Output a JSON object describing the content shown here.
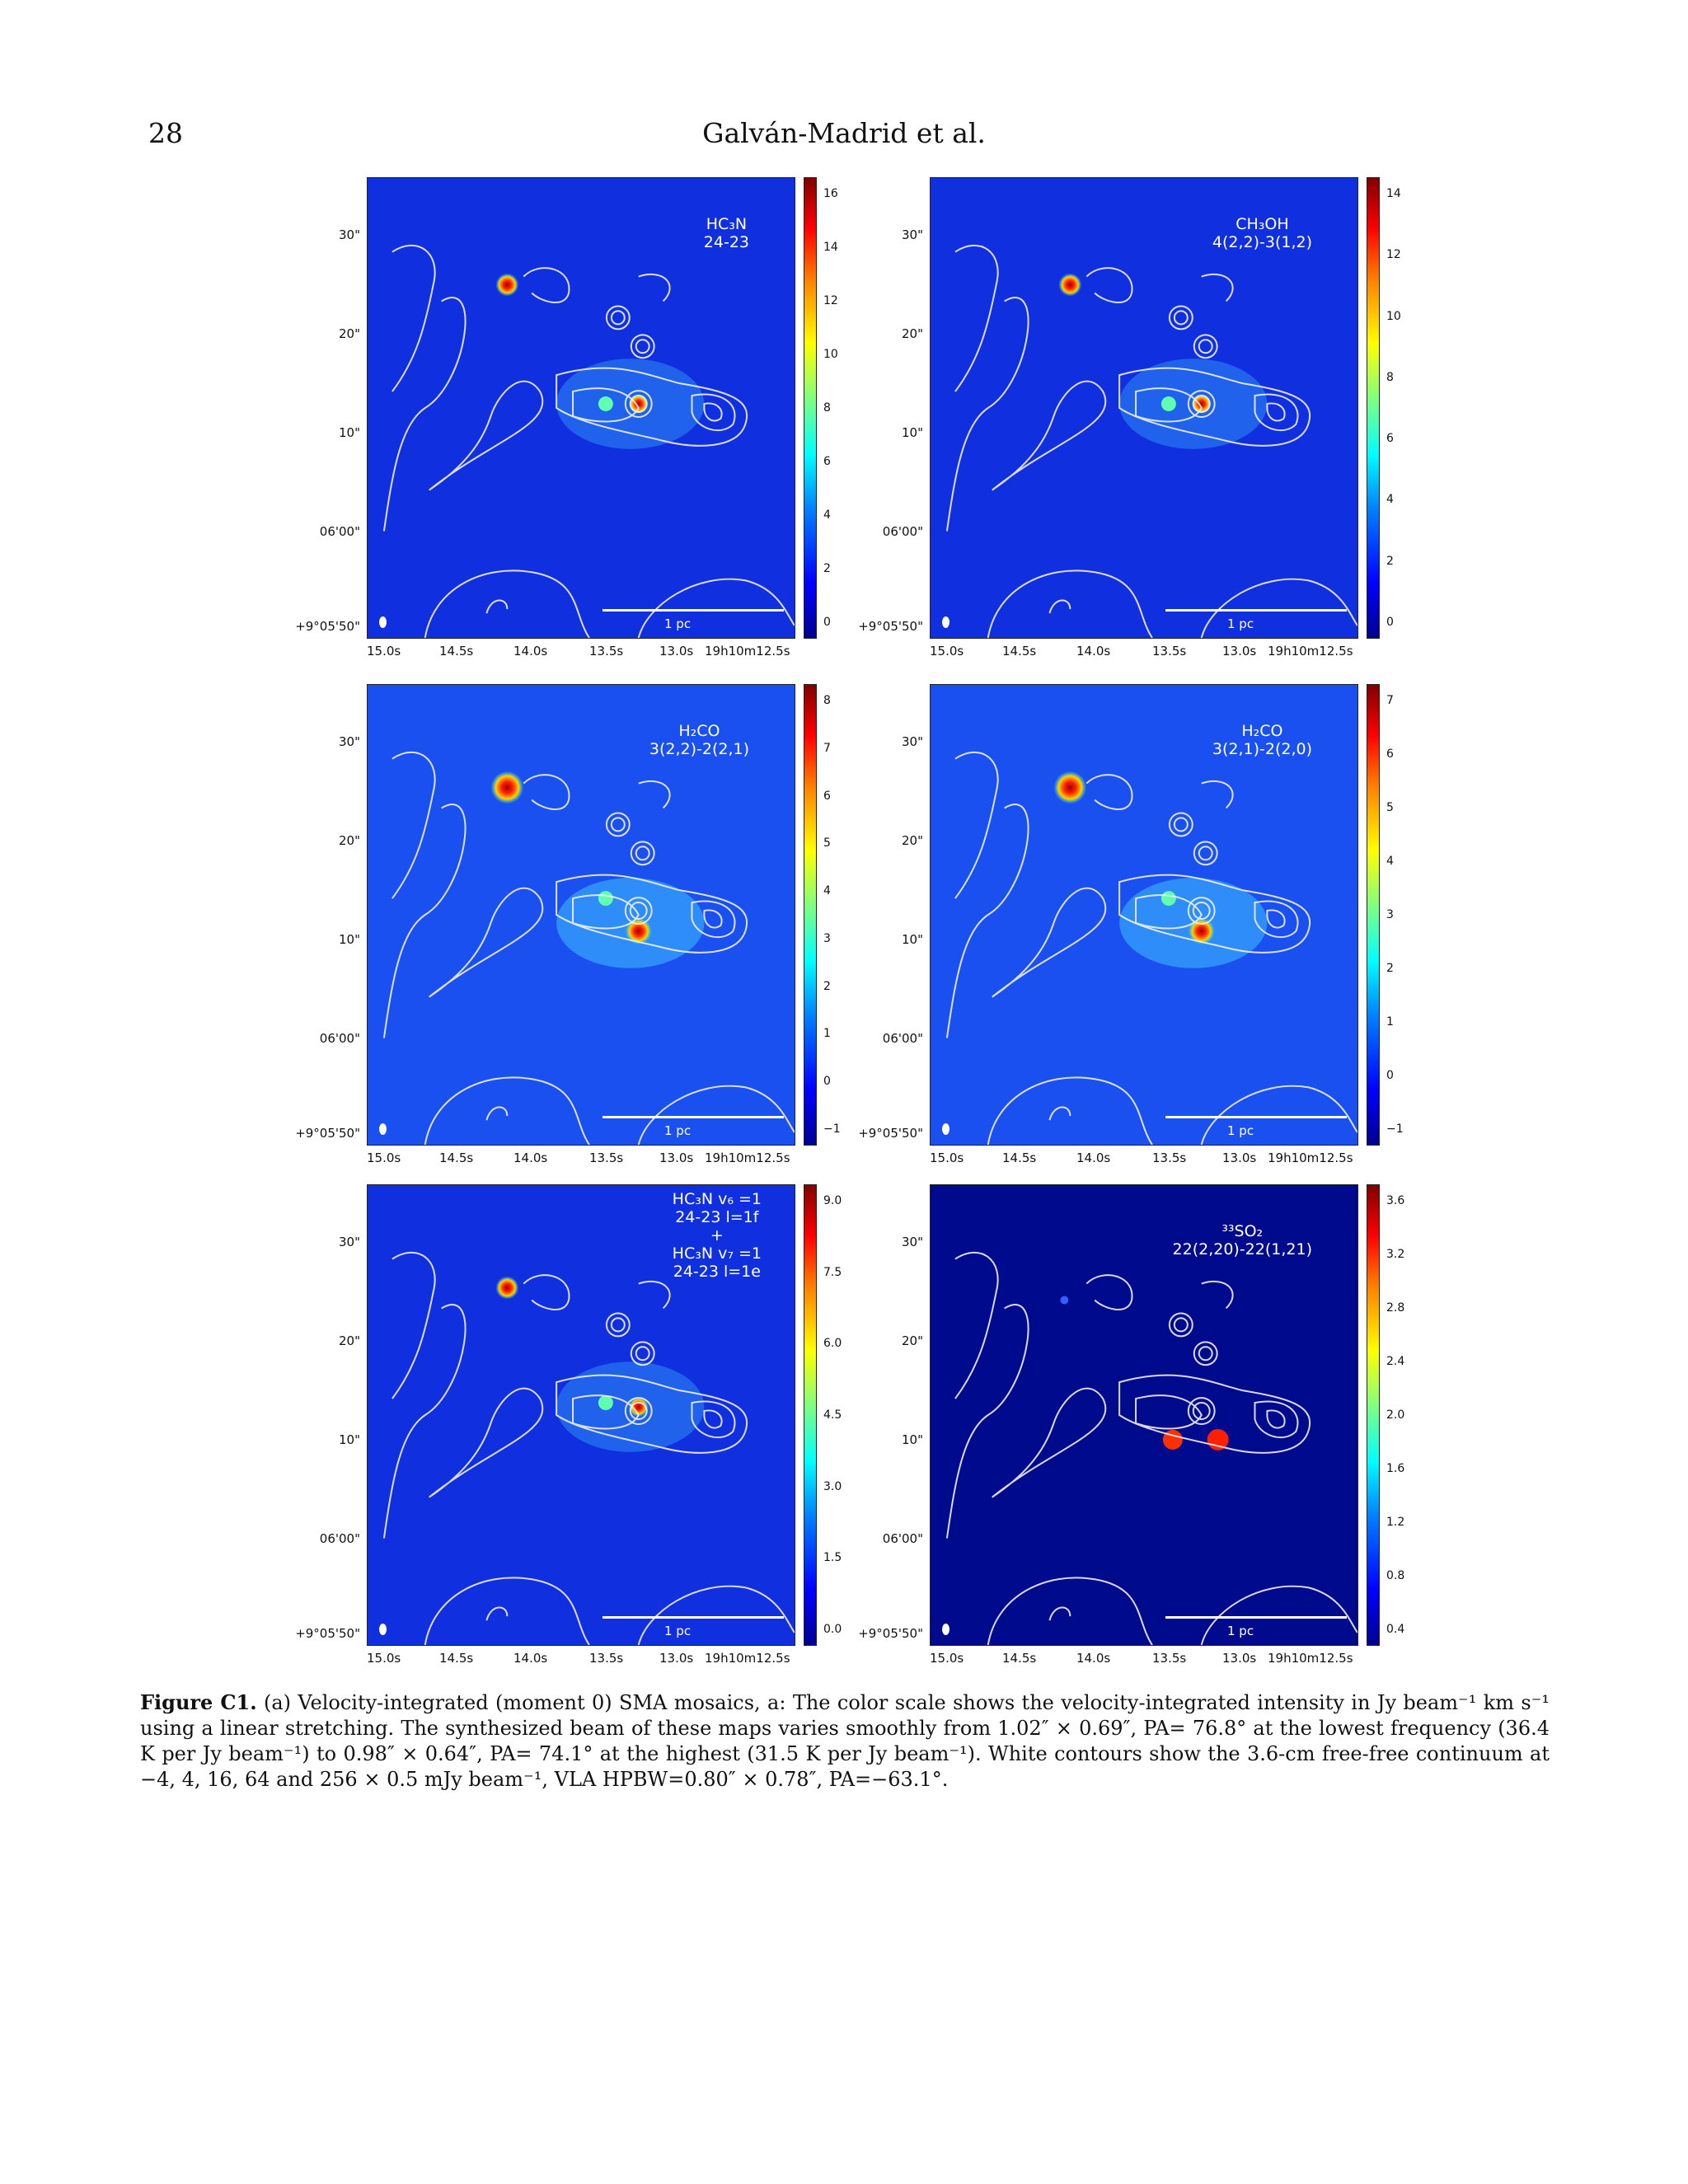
{
  "header": {
    "page_number": "28",
    "authors": "Galván-Madrid et al."
  },
  "axes": {
    "y_ticks": [
      "30\"",
      "20\"",
      "10\"",
      "06'00\"",
      "+9°05'50\""
    ],
    "x_ticks": [
      "15.0s",
      "14.5s",
      "14.0s",
      "13.5s",
      "13.0s",
      "19h10m12.5s"
    ],
    "scale_bar": "1 pc"
  },
  "panels": [
    {
      "id": "hc3n",
      "label": "HC₃N\n24-23",
      "cbar_ticks": [
        "16",
        "14",
        "12",
        "10",
        "8",
        "6",
        "4",
        "2",
        "0"
      ],
      "bg": "#1030e0",
      "dark": false
    },
    {
      "id": "ch3oh",
      "label": "CH₃OH\n4(2,2)-3(1,2)",
      "cbar_ticks": [
        "14",
        "12",
        "10",
        "8",
        "6",
        "4",
        "2",
        "0"
      ],
      "bg": "#1030e0",
      "dark": false
    },
    {
      "id": "h2co_a",
      "label": "H₂CO\n3(2,2)-2(2,1)",
      "cbar_ticks": [
        "8",
        "7",
        "6",
        "5",
        "4",
        "3",
        "2",
        "1",
        "0",
        "−1"
      ],
      "bg": "#1a50f0",
      "dark": false
    },
    {
      "id": "h2co_b",
      "label": "H₂CO\n3(2,1)-2(2,0)",
      "cbar_ticks": [
        "7",
        "6",
        "5",
        "4",
        "3",
        "2",
        "1",
        "0",
        "−1"
      ],
      "bg": "#1a50f0",
      "dark": false
    },
    {
      "id": "hc3n_v7",
      "label": "HC₃N v₆ =1\n24-23 l=1f\n+\nHC₃N v₇ =1\n24-23 l=1e",
      "cbar_ticks": [
        "9.0",
        "7.5",
        "6.0",
        "4.5",
        "3.0",
        "1.5",
        "0.0"
      ],
      "bg": "#1030e0",
      "dark": false
    },
    {
      "id": "33so2",
      "label": "³³SO₂\n22(2,20)-22(1,21)",
      "cbar_ticks": [
        "3.6",
        "3.2",
        "2.8",
        "2.4",
        "2.0",
        "1.6",
        "1.2",
        "0.8",
        "0.4"
      ],
      "bg": "#000a8c",
      "dark": true
    }
  ],
  "caption": {
    "figure": "Figure C1.",
    "text": "(a) Velocity-integrated (moment 0) SMA mosaics, a: The color scale shows the velocity-integrated intensity in Jy beam⁻¹ km s⁻¹ using a linear stretching. The synthesized beam of these maps varies smoothly from 1.02″ × 0.69″, PA= 76.8° at the lowest frequency (36.4 K per Jy beam⁻¹) to 0.98″ × 0.64″, PA= 74.1° at the highest (31.5 K per Jy beam⁻¹). White contours show the 3.6-cm free-free continuum at −4, 4, 16, 64 and 256 × 0.5 mJy beam⁻¹, VLA HPBW=0.80″ × 0.78″, PA=−63.1°."
  }
}
